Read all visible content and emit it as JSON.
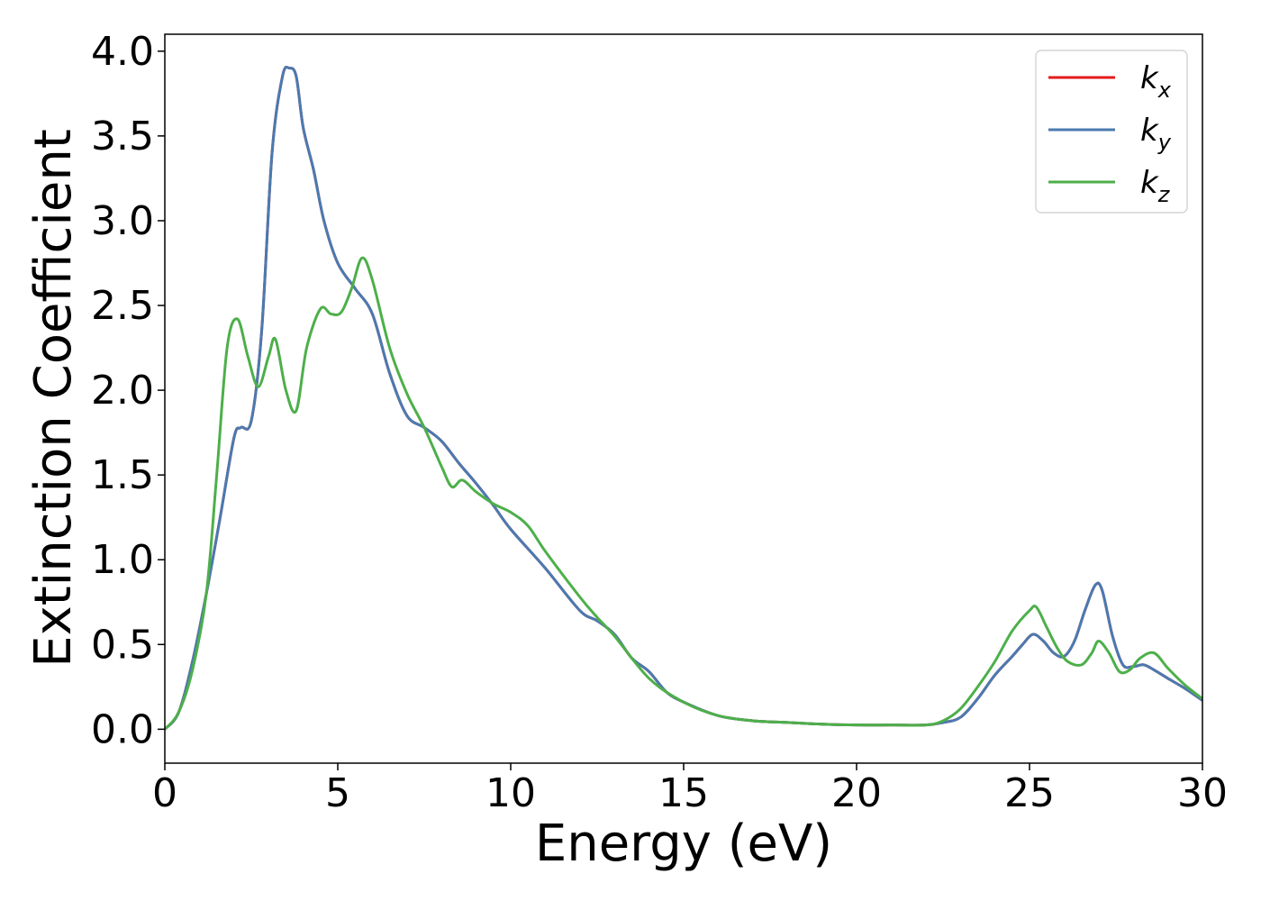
{
  "chart_data": {
    "type": "line",
    "title": "",
    "xlabel": "Energy (eV)",
    "ylabel": "Extinction Coefficient",
    "xlim": [
      0,
      30
    ],
    "ylim": [
      -0.2,
      4.1
    ],
    "x_ticks": [
      0,
      5,
      10,
      15,
      20,
      25,
      30
    ],
    "x_tick_labels": [
      "0",
      "5",
      "10",
      "15",
      "20",
      "25",
      "30"
    ],
    "y_ticks": [
      0.0,
      0.5,
      1.0,
      1.5,
      2.0,
      2.5,
      3.0,
      3.5,
      4.0
    ],
    "y_tick_labels": [
      "0.0",
      "0.5",
      "1.0",
      "1.5",
      "2.0",
      "2.5",
      "3.0",
      "3.5",
      "4.0"
    ],
    "grid": false,
    "legend": {
      "placement": "top-right",
      "entries": [
        {
          "base": "k",
          "sub": "x",
          "color": "#e41a1c"
        },
        {
          "base": "k",
          "sub": "y",
          "color": "#4a7ab0"
        },
        {
          "base": "k",
          "sub": "z",
          "color": "#4daf4a"
        }
      ]
    },
    "series": [
      {
        "name": "kx",
        "color": "#e41a1c",
        "x": [
          0,
          0.4,
          0.8,
          1.2,
          1.6,
          2.0,
          2.2,
          2.5,
          2.8,
          3.1,
          3.4,
          3.6,
          3.8,
          4.0,
          4.3,
          4.6,
          5.0,
          5.5,
          6.0,
          6.5,
          7.0,
          7.5,
          8.0,
          8.5,
          9.0,
          9.5,
          10.0,
          11.0,
          12.0,
          12.5,
          13.0,
          13.5,
          14.0,
          14.5,
          15.0,
          16.0,
          17.0,
          18.0,
          19.0,
          20.0,
          21.0,
          22.0,
          22.5,
          23.0,
          23.5,
          24.0,
          24.5,
          24.8,
          25.1,
          25.4,
          25.7,
          26.0,
          26.3,
          26.6,
          26.9,
          27.1,
          27.4,
          27.7,
          28.0,
          28.3,
          28.6,
          29.0,
          29.5,
          30.0
        ],
        "y": [
          0.0,
          0.1,
          0.4,
          0.8,
          1.25,
          1.72,
          1.78,
          1.82,
          2.35,
          3.4,
          3.85,
          3.9,
          3.85,
          3.55,
          3.3,
          3.0,
          2.75,
          2.6,
          2.45,
          2.1,
          1.85,
          1.78,
          1.7,
          1.57,
          1.45,
          1.32,
          1.18,
          0.95,
          0.7,
          0.64,
          0.56,
          0.42,
          0.34,
          0.22,
          0.16,
          0.08,
          0.05,
          0.04,
          0.03,
          0.025,
          0.025,
          0.025,
          0.04,
          0.07,
          0.18,
          0.32,
          0.43,
          0.5,
          0.56,
          0.52,
          0.45,
          0.43,
          0.52,
          0.7,
          0.85,
          0.82,
          0.55,
          0.38,
          0.37,
          0.38,
          0.35,
          0.3,
          0.24,
          0.17
        ]
      },
      {
        "name": "ky",
        "color": "#4a7ab0",
        "x": [
          0,
          0.4,
          0.8,
          1.2,
          1.6,
          2.0,
          2.2,
          2.5,
          2.8,
          3.1,
          3.4,
          3.6,
          3.8,
          4.0,
          4.3,
          4.6,
          5.0,
          5.5,
          6.0,
          6.5,
          7.0,
          7.5,
          8.0,
          8.5,
          9.0,
          9.5,
          10.0,
          11.0,
          12.0,
          12.5,
          13.0,
          13.5,
          14.0,
          14.5,
          15.0,
          16.0,
          17.0,
          18.0,
          19.0,
          20.0,
          21.0,
          22.0,
          22.5,
          23.0,
          23.5,
          24.0,
          24.5,
          24.8,
          25.1,
          25.4,
          25.7,
          26.0,
          26.3,
          26.6,
          26.9,
          27.1,
          27.4,
          27.7,
          28.0,
          28.3,
          28.6,
          29.0,
          29.5,
          30.0
        ],
        "y": [
          0.0,
          0.1,
          0.4,
          0.8,
          1.25,
          1.72,
          1.78,
          1.82,
          2.35,
          3.4,
          3.85,
          3.9,
          3.85,
          3.55,
          3.3,
          3.0,
          2.75,
          2.6,
          2.45,
          2.1,
          1.85,
          1.78,
          1.7,
          1.57,
          1.45,
          1.32,
          1.18,
          0.95,
          0.7,
          0.64,
          0.56,
          0.42,
          0.34,
          0.22,
          0.16,
          0.08,
          0.05,
          0.04,
          0.03,
          0.025,
          0.025,
          0.025,
          0.04,
          0.07,
          0.18,
          0.32,
          0.43,
          0.5,
          0.56,
          0.52,
          0.45,
          0.43,
          0.52,
          0.7,
          0.85,
          0.82,
          0.55,
          0.38,
          0.37,
          0.38,
          0.35,
          0.3,
          0.24,
          0.17
        ]
      },
      {
        "name": "kz",
        "color": "#4daf4a",
        "x": [
          0,
          0.4,
          0.8,
          1.2,
          1.5,
          1.8,
          2.1,
          2.4,
          2.7,
          3.0,
          3.2,
          3.5,
          3.8,
          4.1,
          4.5,
          4.8,
          5.1,
          5.4,
          5.7,
          6.0,
          6.5,
          7.0,
          7.5,
          8.0,
          8.3,
          8.6,
          9.0,
          9.5,
          10.0,
          10.5,
          11.0,
          12.0,
          12.5,
          13.0,
          14.0,
          15.0,
          16.0,
          17.0,
          18.0,
          19.0,
          20.0,
          21.0,
          22.0,
          22.5,
          23.0,
          23.5,
          24.0,
          24.5,
          25.0,
          25.2,
          25.5,
          25.8,
          26.1,
          26.5,
          26.8,
          27.0,
          27.3,
          27.6,
          27.9,
          28.2,
          28.6,
          29.0,
          29.5,
          30.0
        ],
        "y": [
          0.0,
          0.1,
          0.35,
          0.8,
          1.5,
          2.25,
          2.42,
          2.2,
          2.02,
          2.2,
          2.3,
          2.0,
          1.88,
          2.25,
          2.48,
          2.45,
          2.46,
          2.6,
          2.78,
          2.65,
          2.25,
          1.98,
          1.78,
          1.55,
          1.43,
          1.47,
          1.4,
          1.33,
          1.28,
          1.2,
          1.05,
          0.78,
          0.66,
          0.55,
          0.3,
          0.16,
          0.08,
          0.05,
          0.04,
          0.03,
          0.025,
          0.025,
          0.025,
          0.05,
          0.12,
          0.25,
          0.4,
          0.58,
          0.7,
          0.72,
          0.6,
          0.48,
          0.4,
          0.38,
          0.45,
          0.52,
          0.45,
          0.34,
          0.35,
          0.42,
          0.45,
          0.36,
          0.26,
          0.18
        ]
      }
    ]
  }
}
